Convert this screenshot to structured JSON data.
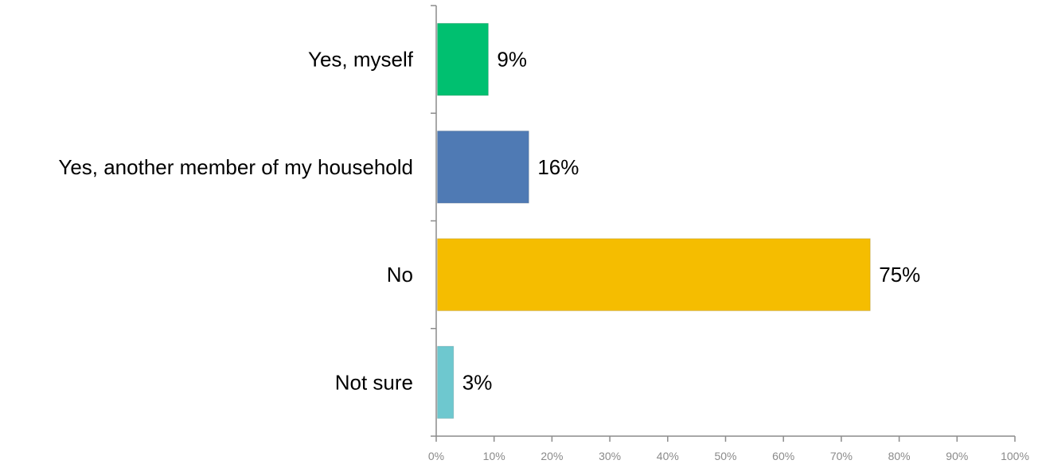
{
  "chart_data": {
    "type": "bar",
    "orientation": "horizontal",
    "title": "",
    "xlabel": "",
    "ylabel": "",
    "categories": [
      "Yes, myself",
      "Yes, another member of my household",
      "No",
      "Not sure"
    ],
    "values": [
      9,
      16,
      75,
      3
    ],
    "data_labels": [
      "9%",
      "16%",
      "75%",
      "3%"
    ],
    "colors": [
      "#00c070",
      "#4f7ab4",
      "#f5bd00",
      "#6ec8cf"
    ],
    "xlim": [
      0,
      100
    ],
    "x_ticks": [
      0,
      10,
      20,
      30,
      40,
      50,
      60,
      70,
      80,
      90,
      100
    ],
    "x_tick_labels": [
      "0%",
      "10%",
      "20%",
      "30%",
      "40%",
      "50%",
      "60%",
      "70%",
      "80%",
      "90%",
      "100%"
    ],
    "grid": false,
    "legend": "none",
    "axis_color": "#8c8c8c",
    "tick_label_color": "#8a8a8a"
  }
}
